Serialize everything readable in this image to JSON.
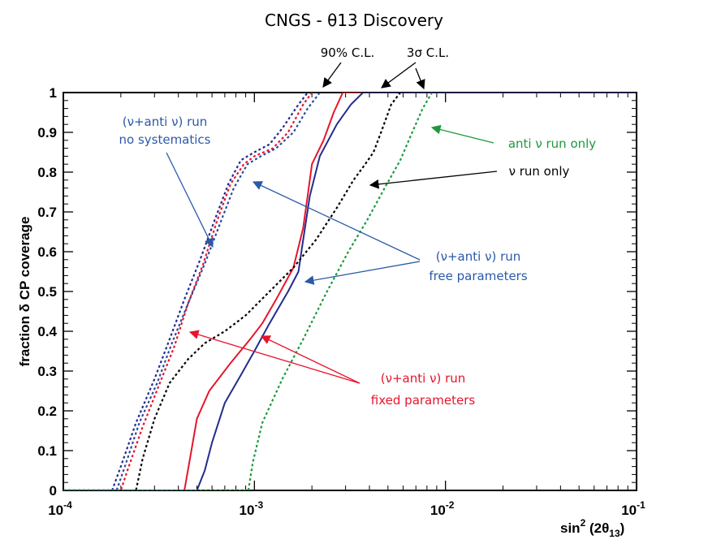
{
  "chart_data": {
    "type": "line",
    "title": "CNGS - θ13 Discovery",
    "xlabel": {
      "main": "sin",
      "sup": "2",
      "paren": " (2θ",
      "sub": "13",
      "close": ")"
    },
    "ylabel": "fraction δ CP coverage",
    "xscale": "log",
    "xlim": [
      0.0001,
      0.1
    ],
    "ylim": [
      0,
      1
    ],
    "x_ticks": [
      {
        "value": 0.0001,
        "base": "10",
        "exp": "-4"
      },
      {
        "value": 0.001,
        "base": "10",
        "exp": "-3"
      },
      {
        "value": 0.01,
        "base": "10",
        "exp": "-2"
      },
      {
        "value": 0.1,
        "base": "10",
        "exp": "-1"
      }
    ],
    "y_ticks": [
      "0",
      "0.1",
      "0.2",
      "0.3",
      "0.4",
      "0.5",
      "0.6",
      "0.7",
      "0.8",
      "0.9",
      "1"
    ],
    "confidence_labels": [
      "90% C.L.",
      "3σ C.L."
    ],
    "series": [
      {
        "name": "(ν+anti ν) run fixed parameters, 90% C.L.",
        "color": "#e8142c",
        "style": "solid",
        "points": [
          [
            0.0001,
            0
          ],
          [
            0.00043,
            0
          ],
          [
            0.00046,
            0.08
          ],
          [
            0.0005,
            0.18
          ],
          [
            0.00058,
            0.25
          ],
          [
            0.00075,
            0.32
          ],
          [
            0.00095,
            0.38
          ],
          [
            0.0011,
            0.42
          ],
          [
            0.0013,
            0.48
          ],
          [
            0.0016,
            0.56
          ],
          [
            0.0018,
            0.66
          ],
          [
            0.0019,
            0.74
          ],
          [
            0.002,
            0.82
          ],
          [
            0.0023,
            0.88
          ],
          [
            0.0026,
            0.95
          ],
          [
            0.0029,
            1
          ],
          [
            0.1,
            1
          ]
        ]
      },
      {
        "name": "(ν+anti ν) run free parameters, 90% C.L.",
        "color": "#232c8c",
        "style": "solid",
        "points": [
          [
            0.0001,
            0
          ],
          [
            0.0005,
            0
          ],
          [
            0.00055,
            0.05
          ],
          [
            0.0006,
            0.12
          ],
          [
            0.0007,
            0.22
          ],
          [
            0.00085,
            0.29
          ],
          [
            0.001,
            0.35
          ],
          [
            0.0012,
            0.42
          ],
          [
            0.0015,
            0.5
          ],
          [
            0.0017,
            0.55
          ],
          [
            0.0018,
            0.63
          ],
          [
            0.00195,
            0.74
          ],
          [
            0.0022,
            0.84
          ],
          [
            0.0027,
            0.92
          ],
          [
            0.0032,
            0.97
          ],
          [
            0.0037,
            1
          ],
          [
            0.1,
            1
          ]
        ]
      },
      {
        "name": "(ν+anti ν) run no systematics, 90% C.L. (red)",
        "color": "#e8142c",
        "style": "dotted",
        "points": [
          [
            0.0001,
            0
          ],
          [
            0.0002,
            0
          ],
          [
            0.00022,
            0.06
          ],
          [
            0.00026,
            0.16
          ],
          [
            0.00032,
            0.27
          ],
          [
            0.00038,
            0.36
          ],
          [
            0.00045,
            0.47
          ],
          [
            0.00054,
            0.57
          ],
          [
            0.00064,
            0.68
          ],
          [
            0.00075,
            0.77
          ],
          [
            0.00088,
            0.82
          ],
          [
            0.001,
            0.84
          ],
          [
            0.00125,
            0.86
          ],
          [
            0.0015,
            0.9
          ],
          [
            0.0018,
            0.97
          ],
          [
            0.002,
            1
          ]
        ]
      },
      {
        "name": "(ν+anti ν) run no systematics, 90% C.L. (blue)",
        "color": "#232c8c",
        "style": "dotted",
        "points": [
          [
            0.0001,
            0
          ],
          [
            0.00018,
            0
          ],
          [
            0.0002,
            0.06
          ],
          [
            0.00024,
            0.17
          ],
          [
            0.0003,
            0.28
          ],
          [
            0.00036,
            0.38
          ],
          [
            0.00043,
            0.48
          ],
          [
            0.00052,
            0.58
          ],
          [
            0.00062,
            0.68
          ],
          [
            0.00073,
            0.77
          ],
          [
            0.00085,
            0.83
          ],
          [
            0.001,
            0.85
          ],
          [
            0.0012,
            0.87
          ],
          [
            0.0014,
            0.91
          ],
          [
            0.0017,
            0.97
          ],
          [
            0.0019,
            1
          ]
        ]
      },
      {
        "name": "(ν+anti ν) run no systematics, 3σ C.L.",
        "color": "#2a4aa0",
        "style": "dotted",
        "points": [
          [
            0.0001,
            0
          ],
          [
            0.00019,
            0
          ],
          [
            0.00021,
            0.06
          ],
          [
            0.00025,
            0.17
          ],
          [
            0.00031,
            0.27
          ],
          [
            0.00037,
            0.37
          ],
          [
            0.00045,
            0.47
          ],
          [
            0.00055,
            0.57
          ],
          [
            0.00066,
            0.67
          ],
          [
            0.00078,
            0.76
          ],
          [
            0.00092,
            0.82
          ],
          [
            0.00108,
            0.84
          ],
          [
            0.0013,
            0.86
          ],
          [
            0.0016,
            0.9
          ],
          [
            0.0019,
            0.96
          ],
          [
            0.0022,
            1
          ]
        ]
      },
      {
        "name": "ν run only",
        "color": "#000000",
        "style": "dotted",
        "points": [
          [
            0.0001,
            0
          ],
          [
            0.00024,
            0
          ],
          [
            0.00026,
            0.08
          ],
          [
            0.0003,
            0.18
          ],
          [
            0.00036,
            0.27
          ],
          [
            0.00045,
            0.33
          ],
          [
            0.00055,
            0.37
          ],
          [
            0.0007,
            0.4
          ],
          [
            0.0009,
            0.44
          ],
          [
            0.0012,
            0.5
          ],
          [
            0.0016,
            0.56
          ],
          [
            0.0021,
            0.63
          ],
          [
            0.0027,
            0.71
          ],
          [
            0.0033,
            0.78
          ],
          [
            0.0038,
            0.82
          ],
          [
            0.0042,
            0.85
          ],
          [
            0.0046,
            0.9
          ],
          [
            0.0052,
            0.97
          ],
          [
            0.0058,
            1
          ]
        ]
      },
      {
        "name": "anti ν run only",
        "color": "#1c9a3c",
        "style": "dotted",
        "points": [
          [
            0.0001,
            0
          ],
          [
            0.00093,
            0
          ],
          [
            0.00098,
            0.07
          ],
          [
            0.0011,
            0.17
          ],
          [
            0.0014,
            0.28
          ],
          [
            0.0018,
            0.38
          ],
          [
            0.0024,
            0.5
          ],
          [
            0.0031,
            0.6
          ],
          [
            0.0039,
            0.68
          ],
          [
            0.0048,
            0.76
          ],
          [
            0.0058,
            0.83
          ],
          [
            0.0067,
            0.9
          ],
          [
            0.0076,
            0.96
          ],
          [
            0.0085,
            1
          ]
        ]
      }
    ],
    "annotations": [
      {
        "lines": [
          "(ν+anti ν) run",
          "no systematics"
        ],
        "color": "#2a5aa8"
      },
      {
        "lines": [
          "anti ν run only"
        ],
        "color": "#1c9a3c"
      },
      {
        "lines": [
          "ν run only"
        ],
        "color": "#000000"
      },
      {
        "lines": [
          "(ν+anti ν) run",
          "free parameters"
        ],
        "color": "#2a5aa8"
      },
      {
        "lines": [
          "(ν+anti ν) run",
          "fixed parameters"
        ],
        "color": "#e8142c"
      }
    ]
  }
}
